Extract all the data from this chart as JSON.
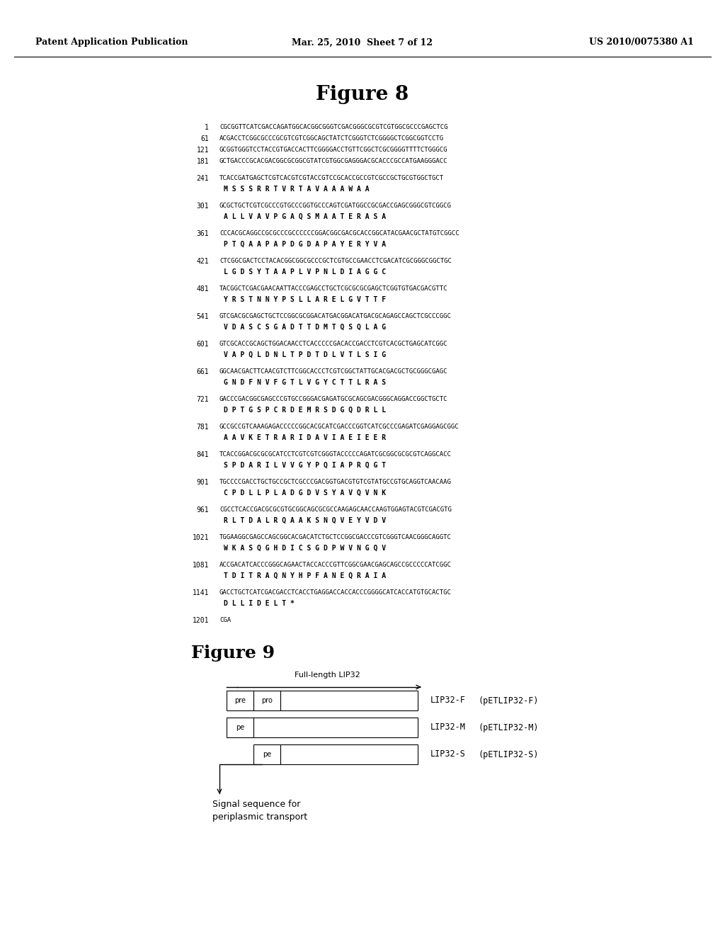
{
  "header_left": "Patent Application Publication",
  "header_center": "Mar. 25, 2010  Sheet 7 of 12",
  "header_right": "US 2010/0075380 A1",
  "fig8_title": "Figure 8",
  "sequences": [
    {
      "num": "1",
      "dna": "CGCGGTTCATCGACCAGATGGCACGGCGGGTCGACGGGCGCGTCGTGGCGCCCGAGCTCG"
    },
    {
      "num": "61",
      "dna": "ACGACCTCGGCGCCCGCGTCGTCGGCAGCTATCTCGGGTCTCGGGGCTCGGCGGTCCTG"
    },
    {
      "num": "121",
      "dna": "GCGGTGGGTCCTACCGTGACCACTTCGGGGACCTGTTCGGCTCGCGGGGTTTTCTGGGCG"
    },
    {
      "num": "181",
      "dna": "GCTGACCCGCACGACGGCGCGGCGTATCGTGGCGAGGGACGCACCCGCCATGAAGGGACC"
    },
    {
      "num": "241",
      "dna": "TCACCGATGAGCTCGTCACGTCGTACCGTCCGCACCGCCGTCGCCGCTGCGTGGCTGCT",
      "aa": "M S S S R R T V R T A V A A A W A A"
    },
    {
      "num": "301",
      "dna": "GCGCTGCTCGTCGCCCGTGCCCGGTGCCCAGTCGATGGCCGCGACCGAGCGGGCGTCGGCG",
      "aa": "A L L V A V P G A Q S M A A T E R A S A"
    },
    {
      "num": "361",
      "dna": "CCCACGCAGGCCGCGCCCGCCCCCCGGACGGCGACGCACCGGCATACGAACGCTATGTCGGCC",
      "aa": "P T Q A A P A P D G D A P A Y E R Y V A"
    },
    {
      "num": "421",
      "dna": "CTCGGCGACTCCTACACGGCGGCGCCCGCTCGTGCCGAACCTCGACATCGCGGGCGGCTGC",
      "aa": "L G D S Y T A A P L V P N L D I A G G C"
    },
    {
      "num": "481",
      "dna": "TACGGCTCGACGAACAATTACCCGAGCCTGCTCGCGCGCGAGCTCGGTGTGACGACGTTC",
      "aa": "Y R S T N N Y P S L L A R E L G V T T F"
    },
    {
      "num": "541",
      "dna": "GTCGACGCGAGCTGCTCCGGCGCGGACATGACGGACATGACGCAGAGCCAGCTCGCCCGGC",
      "aa": "V D A S C S G A D T T D M T Q S Q L A G"
    },
    {
      "num": "601",
      "dna": "GTCGCACCGCAGCTGGACAACCTCACCCCCGACACCGACCTCGTCACGCTGAGCATCGGC",
      "aa": "V A P Q L D N L T P D T D L V T L S I G"
    },
    {
      "num": "661",
      "dna": "GGCAACGACTTCAACGTCTTCGGCACCCTCGTCGGCTATTGCACGACGCTGCGGGCGAGC",
      "aa": "G N D F N V F G T L V G Y C T T L R A S"
    },
    {
      "num": "721",
      "dna": "GACCCGACGGCGAGCCCGTGCCGGGACGAGATGCGCAGCGACGGGCAGGACCGGCTGCTC",
      "aa": "D P T G S P C R D E M R S D G Q D R L L"
    },
    {
      "num": "781",
      "dna": "GCCGCCGTCAAAGAGACCCCCGGCACGCATCGACCCGGTCATCGCCCGAGATCGAGGAGCGGC",
      "aa": "A A V K E T R A R I D A V I A E I E E R"
    },
    {
      "num": "841",
      "dna": "TCACCGGACGCGCGCATCCTCGTCGTCGGGTACCCCCAGATCGCGGCGCGCGTCAGGCACC",
      "aa": "S P D A R I L V V G Y P Q I A P R Q G T"
    },
    {
      "num": "901",
      "dna": "TGCCCCGACCTGCTGCCGCTCGCCCGACGGTGACGTGTCGTATGCCGTGCAGGTCAACAAG",
      "aa": "C P D L L P L A D G D V S Y A V Q V N K"
    },
    {
      "num": "961",
      "dna": "CGCCTCACCGACGCGCGTGCGGCAGCGCGCCAAGAGCAACCAAGTGGAGTACGTCGACGTG",
      "aa": "R L T D A L R Q A A K S N Q V E Y V D V"
    },
    {
      "num": "1021",
      "dna": "TGGAAGGCGAGCCAGCGGCACGACATCTGCTCCGGCGACCCGTCGGGTCAACGGGCAGGTC",
      "aa": "W K A S Q G H D I C S G D P W V N G Q V"
    },
    {
      "num": "1081",
      "dna": "ACCGACATCACCCGGGCAGAACTACCACCCGTTCGGCGAACGAGCAGCCGCCCCCATCGGC",
      "aa": "T D I T R A Q N Y H P F A N E Q R A I A"
    },
    {
      "num": "1141",
      "dna": "GACCTGCTCATCGACGACCTCACCTGAGGACCACCACCCGGGGCATCACCATGTGCACTGC",
      "aa": "D L L I D E L T *"
    },
    {
      "num": "1201",
      "dna": "CGA"
    }
  ],
  "fig9_title": "Figure 9",
  "fig9_label": "Full-length LIP32",
  "arrow_note": "Signal sequence for\nperiplasmic transport",
  "background_color": "#ffffff"
}
